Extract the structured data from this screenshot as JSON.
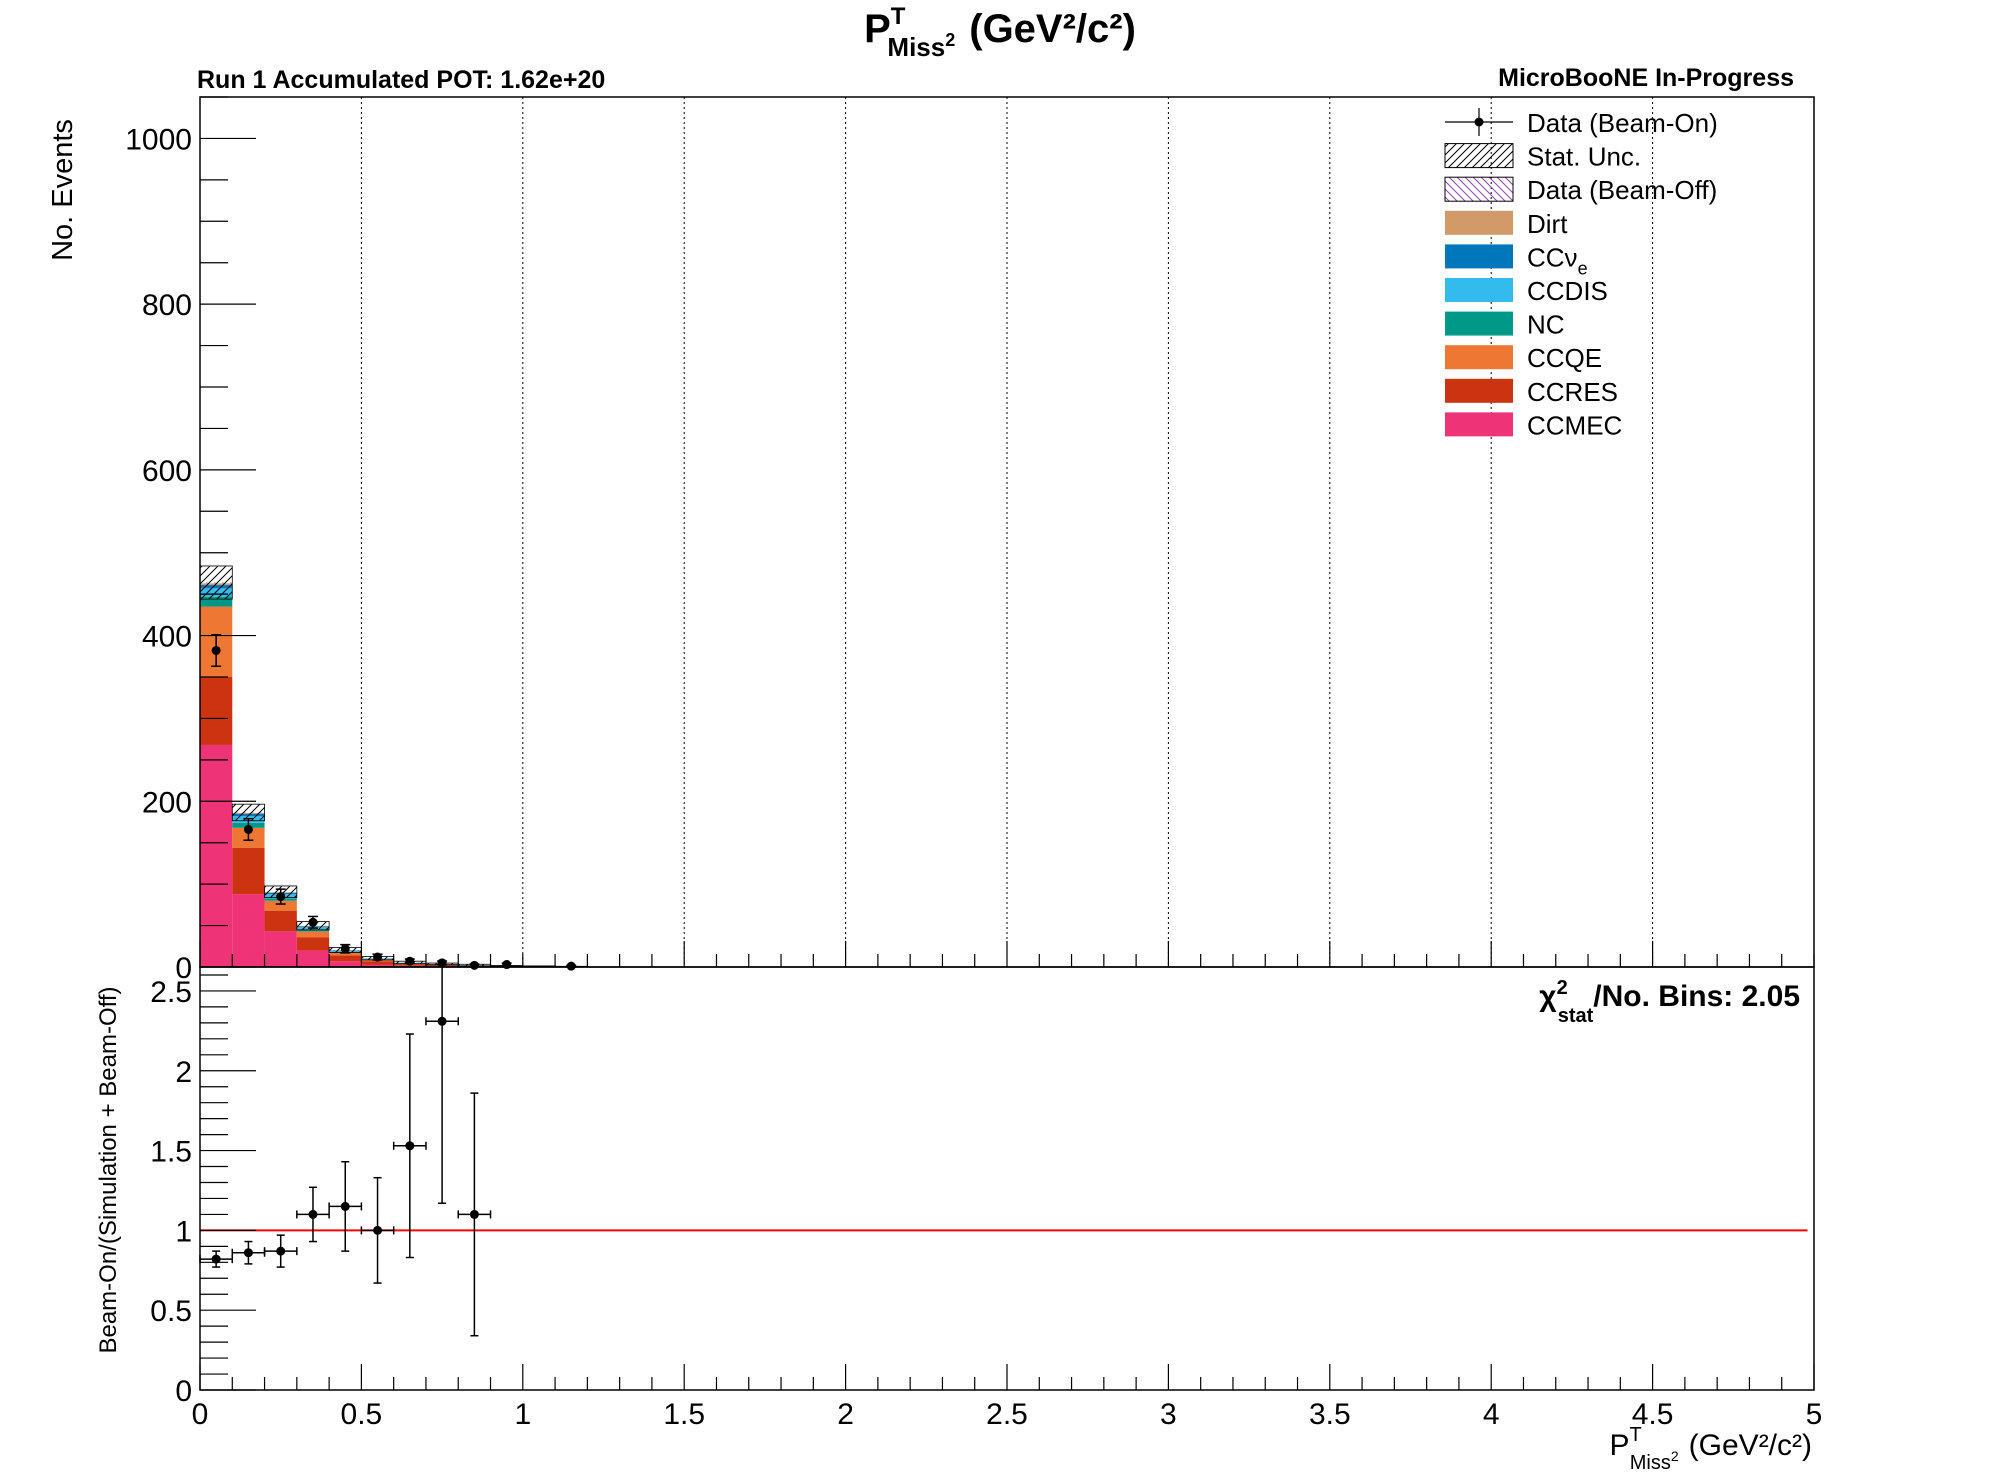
{
  "texts": {
    "title_main": "P",
    "title_sup": "T",
    "title_sub": "Miss",
    "title_sub_sup": "2",
    "title_units": "(GeV²/c²)",
    "pot": "Run 1 Accumulated POT: 1.62e+20",
    "experiment": "MicroBooNE In-Progress",
    "ylabel_top": "No. Events",
    "ylabel_bottom": "Beam-On/(Simulation + Beam-Off)",
    "xlabel_main": "P",
    "xlabel_sup": "T",
    "xlabel_sub": "Miss",
    "xlabel_sub_sup": "2",
    "xlabel_units": "(GeV²/c²)",
    "chi_symbol": "χ",
    "chi_sup": "2",
    "chi_sub": "stat",
    "chi_text": "/No. Bins: 2.05"
  },
  "chart_data": [
    {
      "type": "bar",
      "stacked": true,
      "x_edges": [
        0,
        0.1,
        0.2,
        0.3,
        0.4,
        0.5,
        0.6,
        0.7,
        0.8,
        0.9,
        1.0,
        1.1,
        1.2
      ],
      "xlim": [
        0,
        5
      ],
      "ylim": [
        0,
        1050
      ],
      "y_ticks": [
        0,
        200,
        400,
        600,
        800,
        1000
      ],
      "x_grid": [
        0.5,
        1,
        1.5,
        2,
        2.5,
        3,
        3.5,
        4,
        4.5
      ],
      "series": [
        {
          "name": "CCMEC",
          "color": "#ee3377",
          "values": [
            268,
            88,
            43,
            20,
            7,
            3,
            1.5,
            1,
            0.5,
            0.3,
            0.2,
            0.1
          ]
        },
        {
          "name": "CCRES",
          "color": "#cc3311",
          "values": [
            82,
            56,
            25,
            16,
            7,
            4,
            2,
            1.5,
            1,
            0.5,
            0.3,
            0.2
          ]
        },
        {
          "name": "CCQE",
          "color": "#ee7733",
          "values": [
            85,
            24,
            12,
            7,
            3,
            1.5,
            0.8,
            0.5,
            0.3,
            0.2,
            0.1,
            0.1
          ]
        },
        {
          "name": "NC",
          "color": "#009988",
          "values": [
            12,
            6,
            3,
            2,
            1,
            0.5,
            0.3,
            0.2,
            0.1,
            0.1,
            0.05,
            0.05
          ]
        },
        {
          "name": "CCDIS",
          "color": "#33bbee",
          "values": [
            10,
            8,
            5,
            3,
            1.5,
            1,
            0.5,
            0.3,
            0.2,
            0.1,
            0.1,
            0.05
          ]
        },
        {
          "name": "CCν_e",
          "color": "#0077bb",
          "values": [
            4,
            3,
            1.5,
            1,
            0.5,
            0.3,
            0.2,
            0.1,
            0.1,
            0.05,
            0.05,
            0.02
          ]
        },
        {
          "name": "Dirt",
          "color": "#d19a66",
          "values": [
            2,
            1,
            0.8,
            0.5,
            0.3,
            0.2,
            0.1,
            0.1,
            0.05,
            0.05,
            0.02,
            0.02
          ]
        },
        {
          "name": "Data (Beam-Off)",
          "color": "#8e44ad",
          "values": [
            1,
            0.5,
            0.5,
            0.3,
            0.2,
            0.1,
            0.1,
            0.05,
            0.05,
            0.02,
            0.02,
            0.01
          ]
        }
      ],
      "stat_unc": [
        20,
        10,
        7,
        5,
        3,
        2,
        1.5,
        1,
        1,
        0.5,
        0.5,
        0.3
      ],
      "data_beam_on": {
        "name": "Data (Beam-On)",
        "x": [
          0.05,
          0.15,
          0.25,
          0.35,
          0.45,
          0.55,
          0.65,
          0.75,
          0.85,
          0.95,
          1.15
        ],
        "y": [
          382,
          166,
          85,
          54,
          22,
          12,
          7,
          5,
          2,
          3,
          1
        ],
        "yerr": [
          19,
          13,
          9,
          7,
          5,
          3.5,
          2.6,
          2.2,
          1.4,
          1.7,
          1
        ]
      },
      "legend": {
        "placement": "top-right",
        "entries": [
          {
            "label": "Data (Beam-On)",
            "style": "marker"
          },
          {
            "label": "Stat. Unc.",
            "style": "hatch",
            "color": "#000000"
          },
          {
            "label": "Data (Beam-Off)",
            "style": "hatch",
            "color": "#8e44ad"
          },
          {
            "label": "Dirt",
            "style": "fill",
            "color": "#d19a66"
          },
          {
            "label": "CCν",
            "sub": "e",
            "style": "fill",
            "color": "#0077bb"
          },
          {
            "label": "CCDIS",
            "style": "fill",
            "color": "#33bbee"
          },
          {
            "label": "NC",
            "style": "fill",
            "color": "#009988"
          },
          {
            "label": "CCQE",
            "style": "fill",
            "color": "#ee7733"
          },
          {
            "label": "CCRES",
            "style": "fill",
            "color": "#cc3311"
          },
          {
            "label": "CCMEC",
            "style": "fill",
            "color": "#ee3377"
          }
        ]
      }
    },
    {
      "type": "scatter",
      "x": [
        0.05,
        0.15,
        0.25,
        0.35,
        0.45,
        0.55,
        0.65,
        0.75,
        0.85
      ],
      "xerr": 0.05,
      "y": [
        0.82,
        0.86,
        0.87,
        1.1,
        1.15,
        1.0,
        1.53,
        2.31,
        1.1
      ],
      "yerr": [
        0.05,
        0.07,
        0.1,
        0.17,
        0.28,
        0.33,
        0.7,
        1.14,
        0.76
      ],
      "xlim": [
        0,
        5
      ],
      "ylim": [
        0,
        2.65
      ],
      "y_ticks": [
        0,
        0.5,
        1,
        1.5,
        2,
        2.5
      ],
      "x_ticks": [
        0,
        0.5,
        1,
        1.5,
        2,
        2.5,
        3,
        3.5,
        4,
        4.5,
        5
      ],
      "reference_line": {
        "y": 1,
        "color": "#ff0000"
      }
    }
  ]
}
